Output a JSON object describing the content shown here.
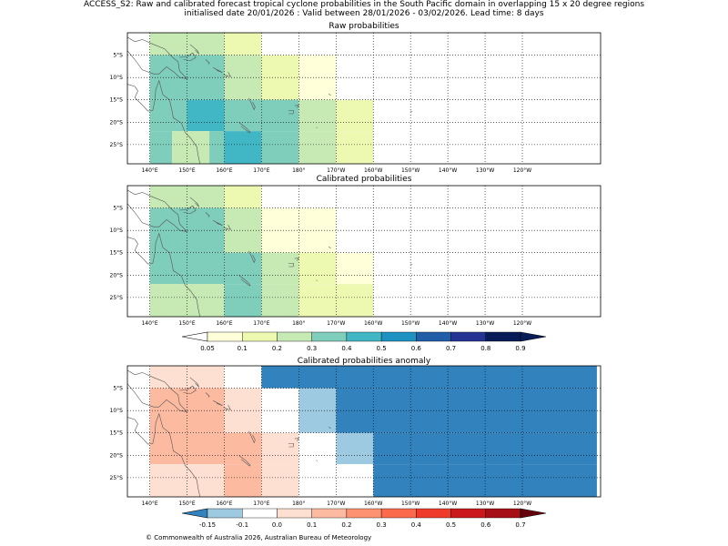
{
  "figure": {
    "title_line1": "ACCESS_S2: Raw and calibrated forecast tropical cyclone probabilities in the South Pacific domain in overlapping 15 x 20 degree regions",
    "title_line2": "initialised date 20/01/2026 :  Valid between 28/01/2026 - 03/02/2026. Lead time: 8 days",
    "copyright": "© Commonwealth of Australia 2026, Australian Bureau of Meteorology"
  },
  "axes": {
    "lon_labels": [
      "140°E",
      "150°E",
      "160°E",
      "170°E",
      "180°",
      "170°W",
      "160°W",
      "150°W",
      "140°W",
      "130°W",
      "120°W"
    ],
    "lat_labels": [
      "5°S",
      "10°S",
      "15°S",
      "20°S",
      "25°S"
    ]
  },
  "panels": [
    {
      "title": "Raw probabilities",
      "cells": [
        {
          "lon": [
            140,
            160
          ],
          "lat": [
            0,
            -5
          ],
          "value": 0.25
        },
        {
          "lon": [
            160,
            170
          ],
          "lat": [
            0,
            -5
          ],
          "value": 0.15
        },
        {
          "lon": [
            140,
            160
          ],
          "lat": [
            -5,
            -15
          ],
          "value": 0.35
        },
        {
          "lon": [
            160,
            170
          ],
          "lat": [
            -5,
            -15
          ],
          "value": 0.25
        },
        {
          "lon": [
            170,
            180
          ],
          "lat": [
            -5,
            -15
          ],
          "value": 0.15
        },
        {
          "lon": [
            180,
            190
          ],
          "lat": [
            -5,
            -15
          ],
          "value": 0.07
        },
        {
          "lon": [
            140,
            150
          ],
          "lat": [
            -15,
            -22
          ],
          "value": 0.35
        },
        {
          "lon": [
            150,
            160
          ],
          "lat": [
            -15,
            -22
          ],
          "value": 0.45
        },
        {
          "lon": [
            160,
            180
          ],
          "lat": [
            -15,
            -22
          ],
          "value": 0.35
        },
        {
          "lon": [
            180,
            190
          ],
          "lat": [
            -15,
            -22
          ],
          "value": 0.25
        },
        {
          "lon": [
            190,
            200
          ],
          "lat": [
            -15,
            -22
          ],
          "value": 0.15
        },
        {
          "lon": [
            140,
            146
          ],
          "lat": [
            -22,
            -30
          ],
          "value": 0.35
        },
        {
          "lon": [
            146,
            156
          ],
          "lat": [
            -22,
            -30
          ],
          "value": 0.25
        },
        {
          "lon": [
            156,
            160
          ],
          "lat": [
            -22,
            -30
          ],
          "value": 0.35
        },
        {
          "lon": [
            160,
            170
          ],
          "lat": [
            -22,
            -30
          ],
          "value": 0.45
        },
        {
          "lon": [
            170,
            180
          ],
          "lat": [
            -22,
            -30
          ],
          "value": 0.35
        },
        {
          "lon": [
            180,
            190
          ],
          "lat": [
            -22,
            -30
          ],
          "value": 0.25
        },
        {
          "lon": [
            190,
            200
          ],
          "lat": [
            -22,
            -30
          ],
          "value": 0.15
        }
      ]
    },
    {
      "title": "Calibrated probabilities",
      "cells": [
        {
          "lon": [
            140,
            160
          ],
          "lat": [
            0,
            -5
          ],
          "value": 0.25
        },
        {
          "lon": [
            160,
            170
          ],
          "lat": [
            0,
            -5
          ],
          "value": 0.15
        },
        {
          "lon": [
            140,
            160
          ],
          "lat": [
            -5,
            -15
          ],
          "value": 0.35
        },
        {
          "lon": [
            160,
            170
          ],
          "lat": [
            -5,
            -15
          ],
          "value": 0.25
        },
        {
          "lon": [
            170,
            190
          ],
          "lat": [
            -5,
            -15
          ],
          "value": 0.07
        },
        {
          "lon": [
            140,
            160
          ],
          "lat": [
            -15,
            -22
          ],
          "value": 0.35
        },
        {
          "lon": [
            160,
            170
          ],
          "lat": [
            -15,
            -22
          ],
          "value": 0.35
        },
        {
          "lon": [
            170,
            180
          ],
          "lat": [
            -15,
            -22
          ],
          "value": 0.25
        },
        {
          "lon": [
            180,
            190
          ],
          "lat": [
            -15,
            -22
          ],
          "value": 0.15
        },
        {
          "lon": [
            190,
            200
          ],
          "lat": [
            -15,
            -22
          ],
          "value": 0.07
        },
        {
          "lon": [
            140,
            160
          ],
          "lat": [
            -22,
            -30
          ],
          "value": 0.25
        },
        {
          "lon": [
            160,
            170
          ],
          "lat": [
            -22,
            -30
          ],
          "value": 0.35
        },
        {
          "lon": [
            170,
            180
          ],
          "lat": [
            -22,
            -30
          ],
          "value": 0.25
        },
        {
          "lon": [
            180,
            200
          ],
          "lat": [
            -22,
            -30
          ],
          "value": 0.15
        }
      ]
    },
    {
      "title": "Calibrated probabilities anomaly",
      "cells": [
        {
          "lon": [
            140,
            160
          ],
          "lat": [
            0,
            -5
          ],
          "value": 0.05
        },
        {
          "lon": [
            160,
            170
          ],
          "lat": [
            0,
            -5
          ],
          "value": -0.02
        },
        {
          "lon": [
            170,
            260
          ],
          "lat": [
            0,
            -5
          ],
          "value": -0.2
        },
        {
          "lon": [
            140,
            160
          ],
          "lat": [
            -5,
            -15
          ],
          "value": 0.15
        },
        {
          "lon": [
            160,
            170
          ],
          "lat": [
            -5,
            -15
          ],
          "value": 0.05
        },
        {
          "lon": [
            170,
            180
          ],
          "lat": [
            -5,
            -15
          ],
          "value": -0.02
        },
        {
          "lon": [
            180,
            190
          ],
          "lat": [
            -5,
            -15
          ],
          "value": -0.12
        },
        {
          "lon": [
            190,
            260
          ],
          "lat": [
            -5,
            -15
          ],
          "value": -0.2
        },
        {
          "lon": [
            140,
            160
          ],
          "lat": [
            -15,
            -22
          ],
          "value": 0.15
        },
        {
          "lon": [
            160,
            170
          ],
          "lat": [
            -15,
            -22
          ],
          "value": 0.15
        },
        {
          "lon": [
            170,
            180
          ],
          "lat": [
            -15,
            -22
          ],
          "value": 0.05
        },
        {
          "lon": [
            180,
            190
          ],
          "lat": [
            -15,
            -22
          ],
          "value": -0.02
        },
        {
          "lon": [
            190,
            200
          ],
          "lat": [
            -15,
            -22
          ],
          "value": -0.12
        },
        {
          "lon": [
            200,
            260
          ],
          "lat": [
            -15,
            -22
          ],
          "value": -0.2
        },
        {
          "lon": [
            140,
            160
          ],
          "lat": [
            -22,
            -30
          ],
          "value": 0.05
        },
        {
          "lon": [
            160,
            170
          ],
          "lat": [
            -22,
            -30
          ],
          "value": 0.15
        },
        {
          "lon": [
            170,
            180
          ],
          "lat": [
            -22,
            -30
          ],
          "value": 0.05
        },
        {
          "lon": [
            180,
            200
          ],
          "lat": [
            -22,
            -30
          ],
          "value": -0.02
        },
        {
          "lon": [
            200,
            260
          ],
          "lat": [
            -22,
            -30
          ],
          "value": -0.2
        }
      ]
    }
  ],
  "colorbars": [
    {
      "name": "probability",
      "ticks": [
        "0.05",
        "0.1",
        "0.2",
        "0.3",
        "0.4",
        "0.5",
        "0.6",
        "0.7",
        "0.8",
        "0.9"
      ],
      "bounds": [
        0.05,
        0.1,
        0.2,
        0.3,
        0.4,
        0.5,
        0.6,
        0.7,
        0.8,
        0.9
      ],
      "under_color": "#ffffff",
      "colors": [
        "#ffffd9",
        "#edf8b1",
        "#c7e9b4",
        "#7fcdbb",
        "#41b6c4",
        "#1d91c0",
        "#225ea8",
        "#253494",
        "#081d58"
      ],
      "over_color": "#081d58"
    },
    {
      "name": "anomaly",
      "ticks": [
        "-0.15",
        "-0.1",
        "0.0",
        "0.1",
        "0.2",
        "0.3",
        "0.4",
        "0.5",
        "0.6",
        "0.7"
      ],
      "bounds": [
        -0.15,
        -0.1,
        0.0,
        0.1,
        0.2,
        0.3,
        0.4,
        0.5,
        0.6,
        0.7
      ],
      "under_color": "#3182bd",
      "colors": [
        "#9ecae1",
        "#ffffff",
        "#fee0d2",
        "#fcbba1",
        "#fc9272",
        "#fb6a4a",
        "#ef3b2c",
        "#cb181d",
        "#a50f15"
      ],
      "over_color": "#67000d"
    }
  ]
}
